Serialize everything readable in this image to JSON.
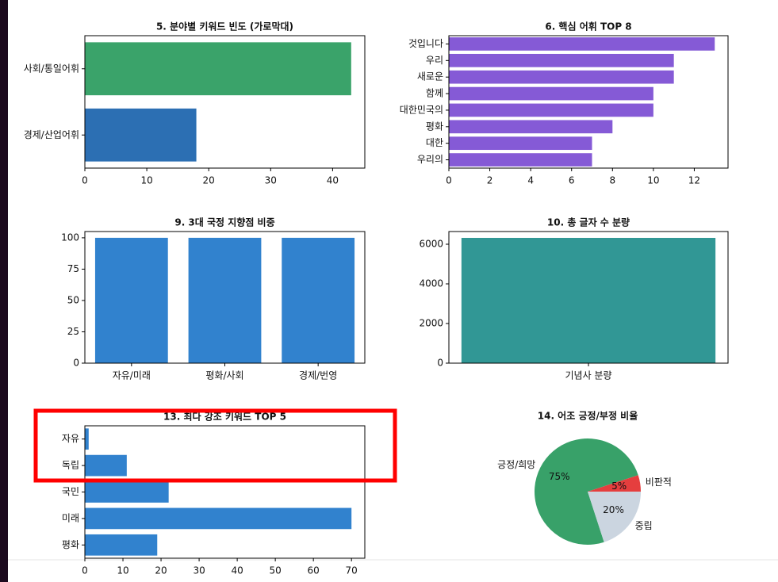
{
  "chart_data": [
    {
      "type": "barh",
      "title": "5. 분야별 키워드 빈도 (가로막대)",
      "categories": [
        "사회/통일어휘",
        "경제/산업어휘"
      ],
      "values": [
        43,
        18
      ],
      "colors": [
        "#3aa36a",
        "#2c6fb3"
      ],
      "xlim": [
        0,
        45.2
      ],
      "xticks": [
        0,
        10,
        20,
        30,
        40
      ]
    },
    {
      "type": "barh",
      "title": "6. 핵심 어휘 TOP 8",
      "categories": [
        "것입니다",
        "우리",
        "새로운",
        "함께",
        "대한민국의",
        "평화",
        "대한",
        "우리의"
      ],
      "values": [
        13,
        11,
        11,
        10,
        10,
        8,
        7,
        7
      ],
      "color": "#855ad6",
      "xlim": [
        0,
        13.65
      ],
      "xticks": [
        0,
        2,
        4,
        6,
        8,
        10,
        12
      ]
    },
    {
      "type": "bar",
      "title": "9. 3대 국정 지향점 비중",
      "categories": [
        "자유/미래",
        "평화/사회",
        "경제/번영"
      ],
      "values": [
        100,
        100,
        100
      ],
      "color": "#3182ce",
      "ylim": [
        0,
        105
      ],
      "yticks": [
        0,
        25,
        50,
        75,
        100
      ]
    },
    {
      "type": "bar",
      "title": "10. 총 글자 수 분량",
      "categories": [
        "기념사 분량"
      ],
      "values": [
        6320
      ],
      "color": "#319795",
      "ylim": [
        0,
        6640
      ],
      "yticks": [
        0,
        2000,
        4000,
        6000
      ]
    },
    {
      "type": "barh",
      "title": "13. 최다 강조 키워드 TOP 5",
      "categories": [
        "자유",
        "독립",
        "국민",
        "미래",
        "평화"
      ],
      "values": [
        1,
        11,
        22,
        70,
        19
      ],
      "color": "#3182ce",
      "xlim": [
        0,
        73.5
      ],
      "xticks": [
        0,
        10,
        20,
        30,
        40,
        50,
        60,
        70
      ]
    },
    {
      "type": "pie",
      "title": "14. 어조 긍정/부정 비율",
      "labels": [
        "긍정/희망",
        "중립",
        "비판적"
      ],
      "values": [
        75,
        20,
        5
      ],
      "value_labels": [
        "75%",
        "20%",
        "5%"
      ],
      "colors": [
        "#38a169",
        "#cbd5e0",
        "#e53e3e"
      ]
    }
  ]
}
